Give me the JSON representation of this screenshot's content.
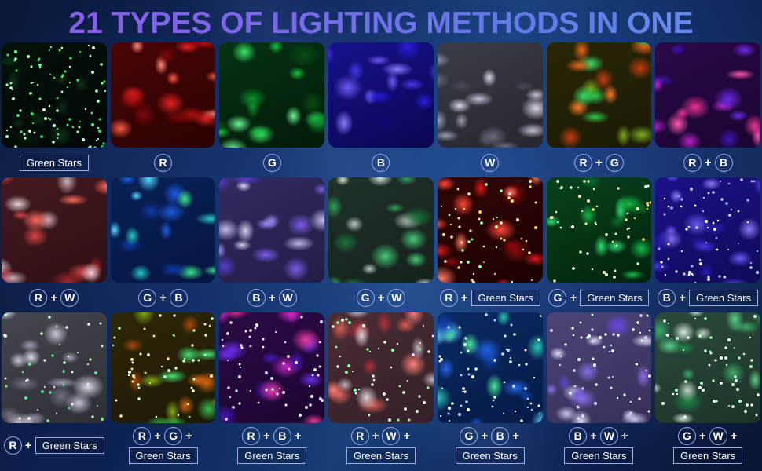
{
  "title": "21 TYPES OF LIGHTING METHODS IN ONE",
  "colors": {
    "title_gradient_left": "#8a5ce6",
    "title_gradient_right": "#6f8ef2",
    "background_dark": "#0a1838",
    "background_light": "#163d74",
    "label_border": "#9fa9e6",
    "label_text": "#ffffff"
  },
  "tiles": [
    {
      "name": "green-stars",
      "label_lines": [
        [
          {
            "k": "box",
            "v": "Green Stars"
          }
        ]
      ],
      "base": [
        "#04110a",
        "#020806"
      ],
      "blobs": [
        "#0a2a14",
        "#06180c",
        "#0d3318",
        "#051408"
      ],
      "stars": {
        "colors": [
          "#54ff7d",
          "#c8ffd6",
          "#2fe05e",
          "#9effb8"
        ],
        "count": 95
      }
    },
    {
      "name": "r",
      "label_lines": [
        [
          {
            "k": "c",
            "v": "R"
          }
        ]
      ],
      "base": [
        "#4a0505",
        "#2a0202"
      ],
      "blobs": [
        "#e82222",
        "#ff5a45",
        "#b80f0f",
        "#ff8878",
        "#7a0808"
      ],
      "stars": null
    },
    {
      "name": "g",
      "label_lines": [
        [
          {
            "k": "c",
            "v": "G"
          }
        ]
      ],
      "base": [
        "#063314",
        "#021a08"
      ],
      "blobs": [
        "#17c23e",
        "#3ae868",
        "#0a8f28",
        "#074d15",
        "#6cf598"
      ],
      "stars": null
    },
    {
      "name": "b",
      "label_lines": [
        [
          {
            "k": "c",
            "v": "B"
          }
        ]
      ],
      "base": [
        "#17128c",
        "#0a0650"
      ],
      "blobs": [
        "#4636e8",
        "#2a1cd8",
        "#6a5af5",
        "#0d0870",
        "#8a7cff"
      ],
      "stars": null
    },
    {
      "name": "w",
      "label_lines": [
        [
          {
            "k": "c",
            "v": "W"
          }
        ]
      ],
      "base": [
        "#3c3c46",
        "#26262e"
      ],
      "blobs": [
        "#9a9ab2",
        "#d8d8e6",
        "#6a6a7a",
        "#c2c2d4",
        "#4a4a56"
      ],
      "stars": null
    },
    {
      "name": "r-g",
      "label_lines": [
        [
          {
            "k": "c",
            "v": "R"
          },
          {
            "k": "p",
            "v": "+"
          },
          {
            "k": "c",
            "v": "G"
          }
        ]
      ],
      "base": [
        "#2a2606",
        "#1a1a04"
      ],
      "blobs": [
        "#e8641a",
        "#2ec74a",
        "#c23c12",
        "#7aa81e",
        "#35e06a",
        "#ff7a2a"
      ],
      "stars": null
    },
    {
      "name": "r-b",
      "label_lines": [
        [
          {
            "k": "c",
            "v": "R"
          },
          {
            "k": "p",
            "v": "+"
          },
          {
            "k": "c",
            "v": "B"
          }
        ]
      ],
      "base": [
        "#2a0848",
        "#1a0530"
      ],
      "blobs": [
        "#bd22c8",
        "#6a2ae8",
        "#e83290",
        "#3c14b0",
        "#ff55aa"
      ],
      "stars": null
    },
    {
      "name": "r-w",
      "label_lines": [
        [
          {
            "k": "c",
            "v": "R"
          },
          {
            "k": "p",
            "v": "+"
          },
          {
            "k": "c",
            "v": "W"
          }
        ]
      ],
      "base": [
        "#44191f",
        "#2e1014"
      ],
      "blobs": [
        "#d84448",
        "#c8b2ba",
        "#a8252c",
        "#e8d4d8",
        "#ff6a60"
      ],
      "stars": null
    },
    {
      "name": "g-b",
      "label_lines": [
        [
          {
            "k": "c",
            "v": "G"
          },
          {
            "k": "p",
            "v": "+"
          },
          {
            "k": "c",
            "v": "B"
          }
        ]
      ],
      "base": [
        "#082158",
        "#051540"
      ],
      "blobs": [
        "#1d5ae0",
        "#23c8c0",
        "#3ae88a",
        "#0d3aa8",
        "#55d8ff"
      ],
      "stars": null
    },
    {
      "name": "b-w",
      "label_lines": [
        [
          {
            "k": "c",
            "v": "B"
          },
          {
            "k": "p",
            "v": "+"
          },
          {
            "k": "c",
            "v": "W"
          }
        ]
      ],
      "base": [
        "#332a60",
        "#241c48"
      ],
      "blobs": [
        "#7c5ce8",
        "#c2b8ec",
        "#5a3cd0",
        "#d8d0f4",
        "#9a86f0"
      ],
      "stars": null
    },
    {
      "name": "g-w",
      "label_lines": [
        [
          {
            "k": "c",
            "v": "G"
          },
          {
            "k": "p",
            "v": "+"
          },
          {
            "k": "c",
            "v": "W"
          }
        ]
      ],
      "base": [
        "#20322a",
        "#15221c"
      ],
      "blobs": [
        "#2f9e58",
        "#bcc8c2",
        "#17733a",
        "#d4e0d8",
        "#46c878"
      ],
      "stars": null
    },
    {
      "name": "r-green-stars",
      "label_lines": [
        [
          {
            "k": "c",
            "v": "R"
          },
          {
            "k": "p",
            "v": "+"
          },
          {
            "k": "box",
            "v": "Green Stars"
          }
        ]
      ],
      "base": [
        "#330505",
        "#1c0202"
      ],
      "blobs": [
        "#d81818",
        "#ff4836",
        "#8c0a0a",
        "#ff7a62"
      ],
      "stars": {
        "colors": [
          "#ffe9a2",
          "#ffd24d",
          "#8aff9e",
          "#fff6d8"
        ],
        "count": 55
      }
    },
    {
      "name": "g-green-stars",
      "label_lines": [
        [
          {
            "k": "c",
            "v": "G"
          },
          {
            "k": "p",
            "v": "+"
          },
          {
            "k": "box",
            "v": "Green Stars"
          }
        ]
      ],
      "base": [
        "#07421b",
        "#03240d"
      ],
      "blobs": [
        "#16b845",
        "#2fe070",
        "#0a6e26",
        "#05401a"
      ],
      "stars": {
        "colors": [
          "#fff6c0",
          "#d2ffda",
          "#ffe270",
          "#ffffff"
        ],
        "count": 55
      }
    },
    {
      "name": "b-green-stars",
      "label_lines": [
        [
          {
            "k": "c",
            "v": "B"
          },
          {
            "k": "p",
            "v": "+"
          },
          {
            "k": "box",
            "v": "Green Stars"
          }
        ]
      ],
      "base": [
        "#1c1288",
        "#100a58"
      ],
      "blobs": [
        "#4a38e0",
        "#6a58f2",
        "#2a1cb0",
        "#8a7af8"
      ],
      "stars": {
        "colors": [
          "#ffffff",
          "#cdd6ff",
          "#9aa8ff"
        ],
        "count": 65
      }
    },
    {
      "name": "r-green-stars-row3",
      "label_lines": [
        [
          {
            "k": "c",
            "v": "R"
          },
          {
            "k": "p",
            "v": "+"
          },
          {
            "k": "box",
            "v": "Green Stars"
          }
        ]
      ],
      "base": [
        "#46464f",
        "#2e2e36"
      ],
      "blobs": [
        "#a0a0b6",
        "#dcdce8",
        "#70707e",
        "#c6c6d6"
      ],
      "stars": {
        "colors": [
          "#63e888",
          "#c8ffd8",
          "#ffffff"
        ],
        "count": 45
      }
    },
    {
      "name": "r-g-green-stars",
      "label_lines": [
        [
          {
            "k": "c",
            "v": "R"
          },
          {
            "k": "p",
            "v": "+"
          },
          {
            "k": "c",
            "v": "G"
          },
          {
            "k": "p",
            "v": "+"
          }
        ],
        [
          {
            "k": "box",
            "v": "Green Stars"
          }
        ]
      ],
      "base": [
        "#2e2808",
        "#1c1804"
      ],
      "blobs": [
        "#d8660f",
        "#35bd4a",
        "#a8480c",
        "#84a818",
        "#44e070"
      ],
      "stars": {
        "colors": [
          "#ffffff",
          "#c0ffcc",
          "#ffe9a0"
        ],
        "count": 50
      }
    },
    {
      "name": "r-b-green-stars",
      "label_lines": [
        [
          {
            "k": "c",
            "v": "R"
          },
          {
            "k": "p",
            "v": "+"
          },
          {
            "k": "c",
            "v": "B"
          },
          {
            "k": "p",
            "v": "+"
          }
        ],
        [
          {
            "k": "box",
            "v": "Green Stars"
          }
        ]
      ],
      "base": [
        "#2c0a46",
        "#1b0530"
      ],
      "blobs": [
        "#c427c4",
        "#6a2ce8",
        "#e83898",
        "#4418b8"
      ],
      "stars": {
        "colors": [
          "#ffffff",
          "#ffd0f0",
          "#cdd6ff"
        ],
        "count": 55
      }
    },
    {
      "name": "r-w-green-stars",
      "label_lines": [
        [
          {
            "k": "c",
            "v": "R"
          },
          {
            "k": "p",
            "v": "+"
          },
          {
            "k": "c",
            "v": "W"
          },
          {
            "k": "p",
            "v": "+"
          }
        ],
        [
          {
            "k": "box",
            "v": "Green Stars"
          }
        ]
      ],
      "base": [
        "#4c2c34",
        "#342028"
      ],
      "blobs": [
        "#d85e58",
        "#c2b0ba",
        "#aa3038",
        "#e0d0d6",
        "#ff8078"
      ],
      "stars": {
        "colors": [
          "#7dffa0",
          "#ffffff",
          "#d2ffdc"
        ],
        "count": 45
      }
    },
    {
      "name": "g-b-green-stars",
      "label_lines": [
        [
          {
            "k": "c",
            "v": "G"
          },
          {
            "k": "p",
            "v": "+"
          },
          {
            "k": "c",
            "v": "B"
          },
          {
            "k": "p",
            "v": "+"
          }
        ],
        [
          {
            "k": "box",
            "v": "Green Stars"
          }
        ]
      ],
      "base": [
        "#0a2a62",
        "#061a46"
      ],
      "blobs": [
        "#2262e2",
        "#2ac8b2",
        "#46e896",
        "#1240b0",
        "#62d8ff"
      ],
      "stars": {
        "colors": [
          "#ffffff",
          "#d2fff2",
          "#bcd2ff"
        ],
        "count": 60
      }
    },
    {
      "name": "b-w-green-stars",
      "label_lines": [
        [
          {
            "k": "c",
            "v": "B"
          },
          {
            "k": "p",
            "v": "+"
          },
          {
            "k": "c",
            "v": "W"
          },
          {
            "k": "p",
            "v": "+"
          }
        ],
        [
          {
            "k": "box",
            "v": "Green Stars"
          }
        ]
      ],
      "base": [
        "#4c4478",
        "#363058"
      ],
      "blobs": [
        "#8a6ee8",
        "#cec6f0",
        "#6246cc",
        "#e2dcf8"
      ],
      "stars": {
        "colors": [
          "#ffffff",
          "#e2ffe8",
          "#d6d0ff"
        ],
        "count": 55
      }
    },
    {
      "name": "g-w-green-stars",
      "label_lines": [
        [
          {
            "k": "c",
            "v": "G"
          },
          {
            "k": "p",
            "v": "+"
          },
          {
            "k": "c",
            "v": "W"
          },
          {
            "k": "p",
            "v": "+"
          }
        ],
        [
          {
            "k": "box",
            "v": "Green Stars"
          }
        ]
      ],
      "base": [
        "#2a4a3a",
        "#1c3428"
      ],
      "blobs": [
        "#3aaa6a",
        "#c2d2c8",
        "#1f8848",
        "#d8e8dc",
        "#58d088"
      ],
      "stars": {
        "colors": [
          "#ffffff",
          "#aaffc4",
          "#e6fff0"
        ],
        "count": 55
      }
    }
  ]
}
